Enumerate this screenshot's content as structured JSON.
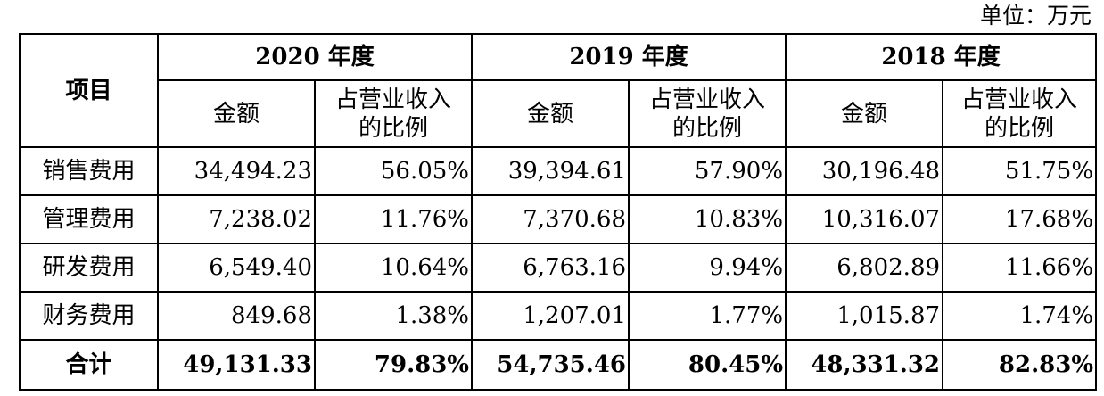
{
  "unit_label": "单位：万元",
  "header": {
    "item": "项目",
    "years": [
      "2020 年度",
      "2019 年度",
      "2018 年度"
    ],
    "amount": "金额",
    "ratio_line1": "占营业收入",
    "ratio_line2": "的比例"
  },
  "rows": [
    {
      "label": "销售费用",
      "cells": [
        "34,494.23",
        "56.05%",
        "39,394.61",
        "57.90%",
        "30,196.48",
        "51.75%"
      ]
    },
    {
      "label": "管理费用",
      "cells": [
        "7,238.02",
        "11.76%",
        "7,370.68",
        "10.83%",
        "10,316.07",
        "17.68%"
      ]
    },
    {
      "label": "研发费用",
      "cells": [
        "6,549.40",
        "10.64%",
        "6,763.16",
        "9.94%",
        "6,802.89",
        "11.66%"
      ]
    },
    {
      "label": "财务费用",
      "cells": [
        "849.68",
        "1.38%",
        "1,207.01",
        "1.77%",
        "1,015.87",
        "1.74%"
      ]
    }
  ],
  "total": {
    "label": "合计",
    "cells": [
      "49,131.33",
      "79.83%",
      "54,735.46",
      "80.45%",
      "48,331.32",
      "82.83%"
    ]
  }
}
